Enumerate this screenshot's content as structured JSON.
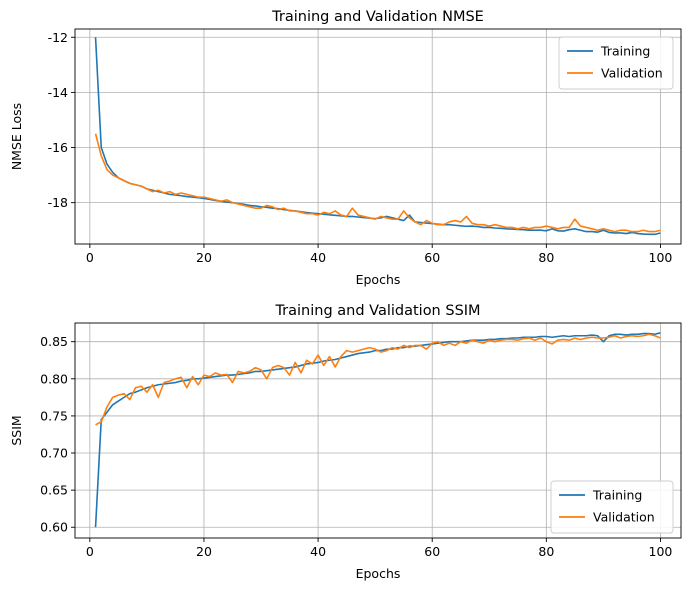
{
  "chart_data": [
    {
      "type": "line",
      "title": "Training and Validation NMSE",
      "xlabel": "Epochs",
      "ylabel": "NMSE Loss",
      "xlim": [
        -2.6,
        103.6
      ],
      "ylim": [
        -19.5,
        -11.7
      ],
      "xticks": [
        0,
        20,
        40,
        60,
        80,
        100
      ],
      "yticks": [
        -18,
        -16,
        -14,
        -12
      ],
      "grid": true,
      "legend_position": "top-right",
      "series": [
        {
          "name": "Training",
          "color": "#1f77b4",
          "x": [
            1,
            2,
            3,
            4,
            5,
            6,
            7,
            8,
            9,
            10,
            11,
            12,
            13,
            14,
            15,
            16,
            17,
            18,
            19,
            20,
            21,
            22,
            23,
            24,
            25,
            26,
            27,
            28,
            29,
            30,
            31,
            32,
            33,
            34,
            35,
            36,
            37,
            38,
            39,
            40,
            41,
            42,
            43,
            44,
            45,
            46,
            47,
            48,
            49,
            50,
            51,
            52,
            53,
            54,
            55,
            56,
            57,
            58,
            59,
            60,
            61,
            62,
            63,
            64,
            65,
            66,
            67,
            68,
            69,
            70,
            71,
            72,
            73,
            74,
            75,
            76,
            77,
            78,
            79,
            80,
            81,
            82,
            83,
            84,
            85,
            86,
            87,
            88,
            89,
            90,
            91,
            92,
            93,
            94,
            95,
            96,
            97,
            98,
            99,
            100
          ],
          "values": [
            -12.0,
            -16.0,
            -16.6,
            -16.9,
            -17.1,
            -17.2,
            -17.3,
            -17.35,
            -17.4,
            -17.5,
            -17.55,
            -17.6,
            -17.65,
            -17.7,
            -17.72,
            -17.75,
            -17.78,
            -17.8,
            -17.82,
            -17.85,
            -17.88,
            -17.92,
            -17.95,
            -17.98,
            -18.0,
            -18.03,
            -18.06,
            -18.1,
            -18.12,
            -18.15,
            -18.17,
            -18.2,
            -18.22,
            -18.25,
            -18.28,
            -18.3,
            -18.33,
            -18.36,
            -18.38,
            -18.4,
            -18.42,
            -18.44,
            -18.46,
            -18.48,
            -18.5,
            -18.5,
            -18.52,
            -18.54,
            -18.56,
            -18.58,
            -18.55,
            -18.5,
            -18.55,
            -18.6,
            -18.65,
            -18.45,
            -18.7,
            -18.72,
            -18.74,
            -18.76,
            -18.78,
            -18.8,
            -18.8,
            -18.82,
            -18.84,
            -18.86,
            -18.85,
            -18.87,
            -18.9,
            -18.9,
            -18.92,
            -18.93,
            -18.95,
            -18.96,
            -18.97,
            -18.98,
            -19.0,
            -19.0,
            -19.0,
            -19.02,
            -18.95,
            -19.02,
            -19.03,
            -18.98,
            -18.95,
            -19.0,
            -19.05,
            -19.05,
            -19.07,
            -19.0,
            -19.08,
            -19.1,
            -19.1,
            -19.12,
            -19.08,
            -19.12,
            -19.14,
            -19.15,
            -19.15,
            -19.1
          ]
        },
        {
          "name": "Validation",
          "color": "#ff7f0e",
          "x": [
            1,
            2,
            3,
            4,
            5,
            6,
            7,
            8,
            9,
            10,
            11,
            12,
            13,
            14,
            15,
            16,
            17,
            18,
            19,
            20,
            21,
            22,
            23,
            24,
            25,
            26,
            27,
            28,
            29,
            30,
            31,
            32,
            33,
            34,
            35,
            36,
            37,
            38,
            39,
            40,
            41,
            42,
            43,
            44,
            45,
            46,
            47,
            48,
            49,
            50,
            51,
            52,
            53,
            54,
            55,
            56,
            57,
            58,
            59,
            60,
            61,
            62,
            63,
            64,
            65,
            66,
            67,
            68,
            69,
            70,
            71,
            72,
            73,
            74,
            75,
            76,
            77,
            78,
            79,
            80,
            81,
            82,
            83,
            84,
            85,
            86,
            87,
            88,
            89,
            90,
            91,
            92,
            93,
            94,
            95,
            96,
            97,
            98,
            99,
            100
          ],
          "values": [
            -15.5,
            -16.3,
            -16.8,
            -17.0,
            -17.1,
            -17.2,
            -17.3,
            -17.35,
            -17.4,
            -17.5,
            -17.6,
            -17.55,
            -17.65,
            -17.6,
            -17.7,
            -17.65,
            -17.7,
            -17.75,
            -17.8,
            -17.8,
            -17.85,
            -17.9,
            -17.95,
            -17.9,
            -18.0,
            -18.05,
            -18.1,
            -18.15,
            -18.2,
            -18.2,
            -18.1,
            -18.15,
            -18.25,
            -18.2,
            -18.3,
            -18.3,
            -18.35,
            -18.4,
            -18.4,
            -18.45,
            -18.35,
            -18.4,
            -18.3,
            -18.45,
            -18.5,
            -18.2,
            -18.45,
            -18.5,
            -18.55,
            -18.6,
            -18.5,
            -18.55,
            -18.6,
            -18.6,
            -18.3,
            -18.55,
            -18.7,
            -18.8,
            -18.65,
            -18.75,
            -18.8,
            -18.8,
            -18.7,
            -18.65,
            -18.7,
            -18.5,
            -18.75,
            -18.8,
            -18.8,
            -18.85,
            -18.8,
            -18.85,
            -18.9,
            -18.9,
            -18.95,
            -18.9,
            -18.95,
            -18.9,
            -18.9,
            -18.85,
            -18.9,
            -18.95,
            -18.9,
            -18.9,
            -18.6,
            -18.85,
            -18.9,
            -18.95,
            -19.0,
            -18.95,
            -19.0,
            -19.05,
            -19.0,
            -19.0,
            -19.05,
            -19.05,
            -19.0,
            -19.05,
            -19.05,
            -19.0
          ]
        }
      ]
    },
    {
      "type": "line",
      "title": "Training and Validation SSIM",
      "xlabel": "Epochs",
      "ylabel": "SSIM",
      "xlim": [
        -2.6,
        103.6
      ],
      "ylim": [
        0.5855,
        0.8752
      ],
      "xticks": [
        0,
        20,
        40,
        60,
        80,
        100
      ],
      "yticks": [
        0.6,
        0.65,
        0.7,
        0.75,
        0.8,
        0.85
      ],
      "grid": true,
      "legend_position": "bottom-right",
      "series": [
        {
          "name": "Training",
          "color": "#1f77b4",
          "x": [
            1,
            2,
            3,
            4,
            5,
            6,
            7,
            8,
            9,
            10,
            11,
            12,
            13,
            14,
            15,
            16,
            17,
            18,
            19,
            20,
            21,
            22,
            23,
            24,
            25,
            26,
            27,
            28,
            29,
            30,
            31,
            32,
            33,
            34,
            35,
            36,
            37,
            38,
            39,
            40,
            41,
            42,
            43,
            44,
            45,
            46,
            47,
            48,
            49,
            50,
            51,
            52,
            53,
            54,
            55,
            56,
            57,
            58,
            59,
            60,
            61,
            62,
            63,
            64,
            65,
            66,
            67,
            68,
            69,
            70,
            71,
            72,
            73,
            74,
            75,
            76,
            77,
            78,
            79,
            80,
            81,
            82,
            83,
            84,
            85,
            86,
            87,
            88,
            89,
            90,
            91,
            92,
            93,
            94,
            95,
            96,
            97,
            98,
            99,
            100
          ],
          "values": [
            0.6,
            0.745,
            0.755,
            0.765,
            0.77,
            0.775,
            0.78,
            0.782,
            0.785,
            0.788,
            0.79,
            0.792,
            0.793,
            0.794,
            0.795,
            0.797,
            0.798,
            0.8,
            0.8,
            0.801,
            0.802,
            0.803,
            0.804,
            0.805,
            0.805,
            0.806,
            0.807,
            0.808,
            0.81,
            0.81,
            0.811,
            0.812,
            0.813,
            0.814,
            0.815,
            0.816,
            0.818,
            0.82,
            0.821,
            0.822,
            0.824,
            0.825,
            0.826,
            0.828,
            0.83,
            0.832,
            0.834,
            0.835,
            0.836,
            0.838,
            0.838,
            0.84,
            0.84,
            0.842,
            0.842,
            0.844,
            0.844,
            0.845,
            0.846,
            0.847,
            0.848,
            0.849,
            0.85,
            0.85,
            0.85,
            0.851,
            0.852,
            0.852,
            0.852,
            0.853,
            0.853,
            0.854,
            0.854,
            0.855,
            0.855,
            0.856,
            0.856,
            0.856,
            0.857,
            0.857,
            0.856,
            0.857,
            0.858,
            0.857,
            0.858,
            0.858,
            0.858,
            0.859,
            0.858,
            0.85,
            0.858,
            0.86,
            0.86,
            0.859,
            0.86,
            0.86,
            0.861,
            0.861,
            0.86,
            0.862
          ]
        },
        {
          "name": "Validation",
          "color": "#ff7f0e",
          "x": [
            1,
            2,
            3,
            4,
            5,
            6,
            7,
            8,
            9,
            10,
            11,
            12,
            13,
            14,
            15,
            16,
            17,
            18,
            19,
            20,
            21,
            22,
            23,
            24,
            25,
            26,
            27,
            28,
            29,
            30,
            31,
            32,
            33,
            34,
            35,
            36,
            37,
            38,
            39,
            40,
            41,
            42,
            43,
            44,
            45,
            46,
            47,
            48,
            49,
            50,
            51,
            52,
            53,
            54,
            55,
            56,
            57,
            58,
            59,
            60,
            61,
            62,
            63,
            64,
            65,
            66,
            67,
            68,
            69,
            70,
            71,
            72,
            73,
            74,
            75,
            76,
            77,
            78,
            79,
            80,
            81,
            82,
            83,
            84,
            85,
            86,
            87,
            88,
            89,
            90,
            91,
            92,
            93,
            94,
            95,
            96,
            97,
            98,
            99,
            100
          ],
          "values": [
            0.738,
            0.742,
            0.762,
            0.775,
            0.778,
            0.78,
            0.772,
            0.788,
            0.79,
            0.782,
            0.792,
            0.775,
            0.795,
            0.797,
            0.8,
            0.802,
            0.788,
            0.803,
            0.792,
            0.805,
            0.803,
            0.808,
            0.805,
            0.806,
            0.795,
            0.81,
            0.808,
            0.81,
            0.815,
            0.812,
            0.8,
            0.815,
            0.818,
            0.815,
            0.805,
            0.822,
            0.808,
            0.825,
            0.82,
            0.832,
            0.818,
            0.83,
            0.816,
            0.83,
            0.838,
            0.836,
            0.838,
            0.84,
            0.842,
            0.84,
            0.836,
            0.838,
            0.842,
            0.84,
            0.845,
            0.842,
            0.845,
            0.845,
            0.84,
            0.848,
            0.85,
            0.845,
            0.848,
            0.845,
            0.85,
            0.848,
            0.852,
            0.85,
            0.848,
            0.852,
            0.85,
            0.852,
            0.853,
            0.853,
            0.852,
            0.854,
            0.855,
            0.852,
            0.855,
            0.85,
            0.847,
            0.852,
            0.853,
            0.852,
            0.855,
            0.853,
            0.855,
            0.856,
            0.855,
            0.855,
            0.856,
            0.858,
            0.855,
            0.857,
            0.858,
            0.857,
            0.858,
            0.86,
            0.858,
            0.855
          ]
        }
      ]
    }
  ]
}
